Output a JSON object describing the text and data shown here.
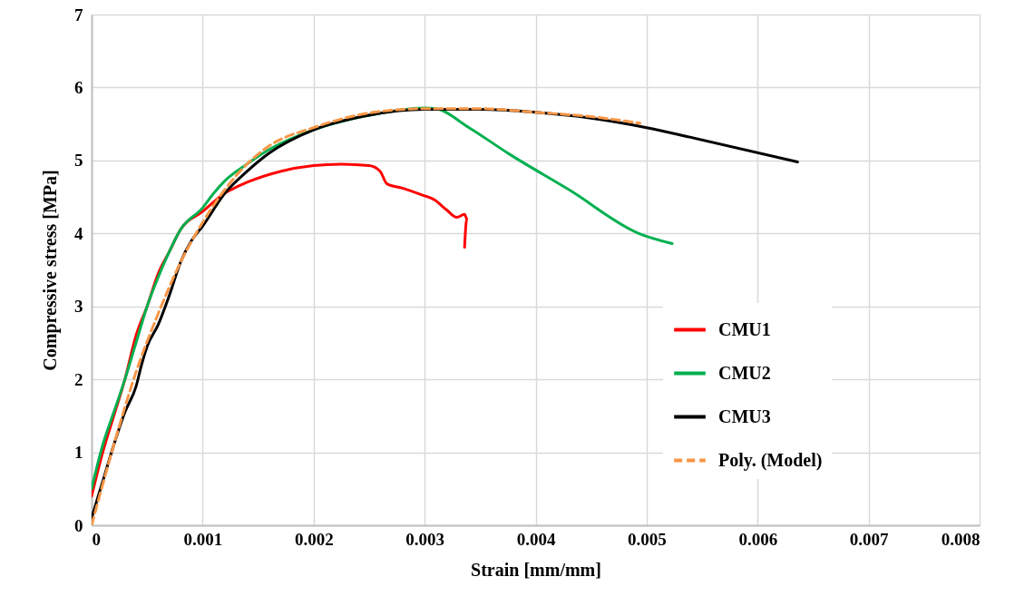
{
  "chart_data": {
    "type": "line",
    "xlabel": "Strain  [mm/mm]",
    "ylabel": "Compressive  stress  [MPa]",
    "xlim": [
      0,
      0.008
    ],
    "xticks": [
      0,
      0.001,
      0.002,
      0.003,
      0.004,
      0.005,
      0.006,
      0.007,
      0.008
    ],
    "ylim": [
      0,
      7
    ],
    "yticks": [
      0,
      1,
      2,
      3,
      4,
      5,
      6,
      7
    ],
    "grid": true,
    "legend": "right",
    "marker": "none",
    "series": [
      {
        "name": "CMU1",
        "color": "#ff0000",
        "line_style": "solid",
        "x": [
          0,
          0.0001,
          0.0002,
          0.0003,
          0.0004,
          0.0005,
          0.0006,
          0.0007,
          0.0008,
          0.001,
          0.0012,
          0.0014,
          0.0017,
          0.002,
          0.00225,
          0.0025,
          0.0026,
          0.00266,
          0.0028,
          0.00297,
          0.0031,
          0.00316,
          0.0032,
          0.00329,
          0.00336,
          0.00338,
          0.00336
        ],
        "values": [
          0.4,
          1.0,
          1.5,
          2.0,
          2.6,
          3.0,
          3.45,
          3.75,
          4.05,
          4.3,
          4.55,
          4.7,
          4.85,
          4.93,
          4.95,
          4.93,
          4.85,
          4.68,
          4.62,
          4.53,
          4.45,
          4.37,
          4.32,
          4.22,
          4.26,
          4.2,
          3.81
        ]
      },
      {
        "name": "CMU2",
        "color": "#00b050",
        "line_style": "solid",
        "x": [
          0,
          0.0001,
          0.0002,
          0.0003,
          0.0004,
          0.0005,
          0.0006,
          0.0007,
          0.0008,
          0.001,
          0.0011,
          0.0012,
          0.0014,
          0.0016,
          0.002,
          0.0025,
          0.003,
          0.0031,
          0.0034,
          0.00376,
          0.0043,
          0.00493,
          0.00523
        ],
        "values": [
          0.5,
          1.1,
          1.55,
          2.0,
          2.5,
          3.0,
          3.4,
          3.75,
          4.05,
          4.35,
          4.55,
          4.72,
          4.95,
          5.15,
          5.42,
          5.62,
          5.72,
          5.71,
          5.45,
          5.09,
          4.6,
          4.0,
          3.86
        ]
      },
      {
        "name": "CMU3",
        "color": "#000000",
        "line_style": "solid",
        "x": [
          0,
          0.0001,
          0.0002,
          0.0003,
          0.0004,
          0.00045,
          0.0005,
          0.0006,
          0.0007,
          0.0008,
          0.0009,
          0.001,
          0.0012,
          0.0014,
          0.0016,
          0.002,
          0.0025,
          0.003,
          0.0035,
          0.004,
          0.0045,
          0.005,
          0.00539,
          0.00636
        ],
        "values": [
          0.1,
          0.6,
          1.1,
          1.55,
          1.9,
          2.2,
          2.45,
          2.75,
          3.15,
          3.6,
          3.9,
          4.1,
          4.55,
          4.85,
          5.1,
          5.42,
          5.62,
          5.7,
          5.7,
          5.66,
          5.58,
          5.45,
          5.32,
          4.98
        ]
      },
      {
        "name": "Poly. (Model)",
        "color": "#f79646",
        "line_style": "dashed",
        "x": [
          0,
          0.0002,
          0.0004,
          0.0006,
          0.0008,
          0.001,
          0.0012,
          0.0014,
          0.0016,
          0.002,
          0.0025,
          0.003,
          0.0035,
          0.004,
          0.0045,
          0.00494
        ],
        "values": [
          0,
          1.1,
          2.1,
          2.9,
          3.6,
          4.15,
          4.6,
          4.95,
          5.2,
          5.45,
          5.65,
          5.71,
          5.71,
          5.66,
          5.6,
          5.51
        ]
      }
    ]
  }
}
